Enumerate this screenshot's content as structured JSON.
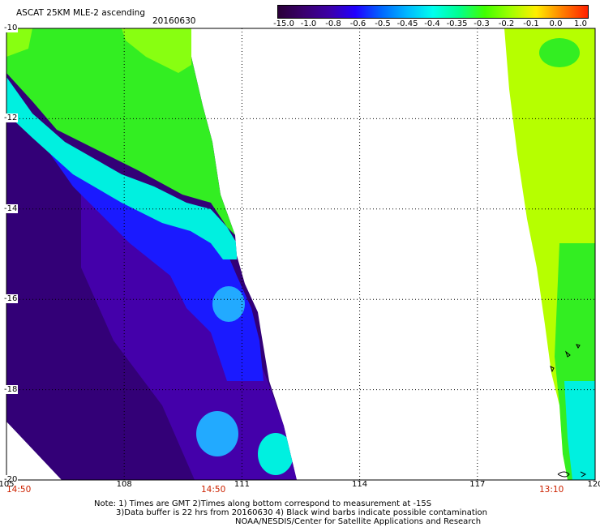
{
  "header": {
    "title": "ASCAT 25KM MLE-2 ascending",
    "date": "20160630"
  },
  "colorbar": {
    "labels": [
      "-15.0",
      "-1.0",
      "-0.8",
      "-0.6",
      "-0.5",
      "-0.45",
      "-0.4",
      "-0.35",
      "-0.3",
      "-0.2",
      "-0.1",
      "0.0",
      "1.0"
    ],
    "colors": [
      "#2a0038",
      "#3a006e",
      "#3c00a8",
      "#2000ff",
      "#0066ff",
      "#00b8ff",
      "#00ffee",
      "#00ff90",
      "#40ff00",
      "#a0ff00",
      "#ffee00",
      "#ff8000",
      "#ff2000"
    ]
  },
  "map": {
    "lat_labels": [
      "-10",
      "-12",
      "-14",
      "-16",
      "-18",
      "-20"
    ],
    "lon_labels": [
      "105",
      "108",
      "111",
      "114",
      "117",
      "120"
    ],
    "times": [
      "14:50",
      "14:50",
      "13:10"
    ],
    "swath_colors": {
      "deep": "#330077",
      "purple": "#4400aa",
      "blue": "#1a1aff",
      "lightblue": "#22aaff",
      "cyan": "#00f0e0",
      "green": "#33ee22",
      "yellowgreen": "#88ff11",
      "lime": "#b6ff00"
    }
  },
  "notes": {
    "line1": "Note: 1) Times are GMT 2)Times along bottom correspond to measurement at -15S",
    "line2": "3)Data buffer is 22 hrs from 20160630 4) Black wind barbs indicate possible contamination",
    "line3": "NOAA/NESDIS/Center for Satellite Applications and Research"
  }
}
